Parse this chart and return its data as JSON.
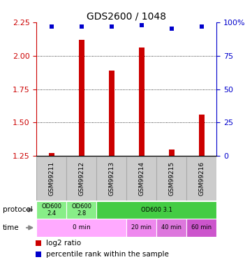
{
  "title": "GDS2600 / 1048",
  "samples": [
    "GSM99211",
    "GSM99212",
    "GSM99213",
    "GSM99214",
    "GSM99215",
    "GSM99216"
  ],
  "log2_ratio": [
    1.27,
    2.12,
    1.89,
    2.06,
    1.3,
    1.56
  ],
  "percentile_rank": [
    97,
    97,
    97,
    98,
    95,
    97
  ],
  "ylim_left": [
    1.25,
    2.25
  ],
  "ylim_right": [
    0,
    100
  ],
  "yticks_left": [
    1.25,
    1.5,
    1.75,
    2.0,
    2.25
  ],
  "yticks_right": [
    0,
    25,
    50,
    75,
    100
  ],
  "bar_color": "#cc0000",
  "dot_color": "#0000cc",
  "left_tick_color": "#cc0000",
  "right_tick_color": "#0000cc",
  "protocol_data": [
    [
      0,
      1,
      "OD600\n2.4",
      "#88ee88"
    ],
    [
      1,
      2,
      "OD600\n2.8",
      "#88ee88"
    ],
    [
      2,
      6,
      "OD600 3.1",
      "#44cc44"
    ]
  ],
  "time_data": [
    [
      0,
      3,
      "0 min",
      "#ffaaff"
    ],
    [
      3,
      4,
      "20 min",
      "#ee88ee"
    ],
    [
      4,
      5,
      "40 min",
      "#dd77dd"
    ],
    [
      5,
      6,
      "60 min",
      "#cc55cc"
    ]
  ],
  "sample_box_color": "#cccccc",
  "sample_box_edge": "#aaaaaa",
  "n_samples": 6,
  "bar_width": 0.18
}
